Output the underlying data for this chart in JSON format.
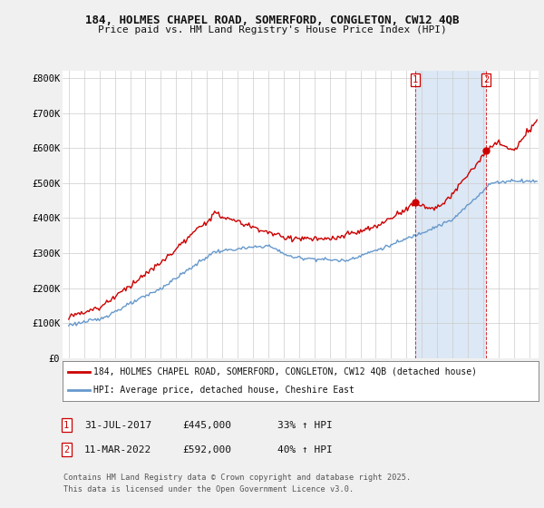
{
  "title1": "184, HOLMES CHAPEL ROAD, SOMERFORD, CONGLETON, CW12 4QB",
  "title2": "Price paid vs. HM Land Registry's House Price Index (HPI)",
  "ylim": [
    0,
    820000
  ],
  "yticks": [
    0,
    100000,
    200000,
    300000,
    400000,
    500000,
    600000,
    700000,
    800000
  ],
  "ytick_labels": [
    "£0",
    "£100K",
    "£200K",
    "£300K",
    "£400K",
    "£500K",
    "£600K",
    "£700K",
    "£800K"
  ],
  "sale1_price": 445000,
  "sale1_label": "31-JUL-2017",
  "sale1_pct": "33% ↑ HPI",
  "sale2_price": 592000,
  "sale2_label": "11-MAR-2022",
  "sale2_pct": "40% ↑ HPI",
  "sale1_year": 2017.578,
  "sale2_year": 2022.189,
  "red_color": "#cc0000",
  "blue_color": "#6699cc",
  "shade_color": "#dce8f5",
  "legend_label1": "184, HOLMES CHAPEL ROAD, SOMERFORD, CONGLETON, CW12 4QB (detached house)",
  "legend_label2": "HPI: Average price, detached house, Cheshire East",
  "footer1": "Contains HM Land Registry data © Crown copyright and database right 2025.",
  "footer2": "This data is licensed under the Open Government Licence v3.0.",
  "bg_color": "#f0f0f0",
  "plot_bg": "#ffffff",
  "x_start_year": 1995,
  "x_end_year": 2025
}
